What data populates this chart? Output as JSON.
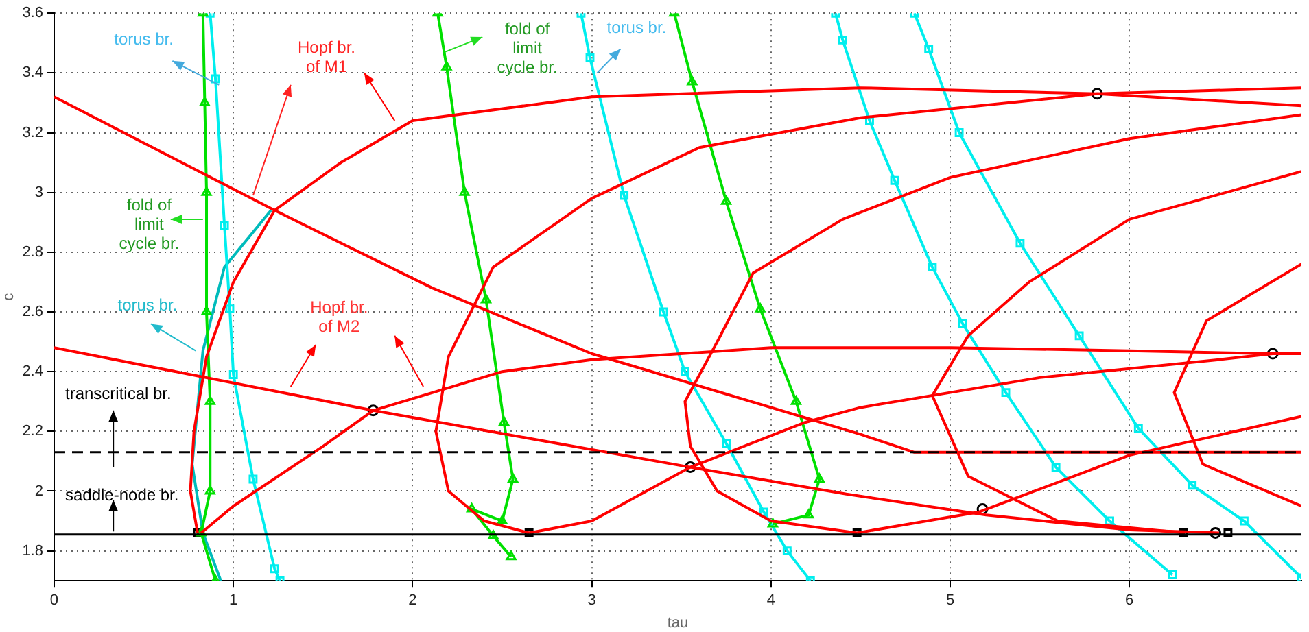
{
  "chart_data": {
    "type": "line",
    "xlabel": "tau",
    "ylabel": "c",
    "xlim": [
      0,
      6.96
    ],
    "ylim": [
      1.7,
      3.6
    ],
    "xticks": [
      0,
      1,
      2,
      3,
      4,
      5,
      6
    ],
    "yticks": [
      1.8,
      2,
      2.2,
      2.4,
      2.6,
      2.8,
      3,
      3.2,
      3.4,
      3.6
    ],
    "grid": true,
    "legend": false,
    "marker": "none",
    "series": [
      {
        "color": "#ff0000",
        "x": [
          0,
          1.23,
          2.11,
          3.0,
          4.5,
          4.8,
          6.96
        ],
        "values": [
          3.32,
          2.94,
          2.68,
          2.46,
          2.19,
          2.13,
          2.13
        ]
      },
      {
        "color": "#ff0000",
        "x": [
          0,
          1.78,
          3.55,
          4.42,
          5.2,
          6.0,
          6.5
        ],
        "values": [
          2.48,
          2.27,
          2.08,
          1.99,
          1.92,
          1.87,
          1.86
        ]
      },
      {
        "color": "#ff0000",
        "x": [
          0.8,
          0.76,
          0.78,
          0.85,
          1.0,
          1.23,
          1.6,
          2.0,
          3.0,
          4.5,
          5.82,
          6.96
        ],
        "values": [
          1.86,
          2.0,
          2.2,
          2.45,
          2.7,
          2.94,
          3.1,
          3.24,
          3.32,
          3.35,
          3.33,
          3.29
        ]
      },
      {
        "color": "#ff0000",
        "x": [
          0.82,
          1.0,
          1.5,
          1.78,
          2.5,
          3.0,
          4.0,
          5.0,
          6.0,
          6.8,
          6.96
        ],
        "values": [
          1.86,
          1.95,
          2.15,
          2.27,
          2.4,
          2.44,
          2.48,
          2.48,
          2.47,
          2.46,
          2.46
        ]
      },
      {
        "color": "#ff0000",
        "x": [
          2.65,
          2.4,
          2.2,
          2.13,
          2.2,
          2.45,
          3.0,
          3.6,
          4.5,
          5.82,
          6.96
        ],
        "values": [
          1.86,
          1.9,
          2.0,
          2.2,
          2.45,
          2.75,
          2.98,
          3.15,
          3.25,
          3.33,
          3.35
        ]
      },
      {
        "color": "#ff0000",
        "x": [
          2.65,
          3.0,
          3.55,
          4.19,
          4.5,
          5.5,
          6.5,
          6.8
        ],
        "values": [
          1.86,
          1.9,
          2.08,
          2.23,
          2.28,
          2.38,
          2.44,
          2.46
        ]
      },
      {
        "color": "#ff0000",
        "x": [
          4.48,
          5.16,
          6.0,
          6.96
        ],
        "values": [
          1.86,
          1.93,
          2.12,
          2.25
        ]
      },
      {
        "color": "#ff0000",
        "x": [
          4.48,
          4.0,
          3.7,
          3.55,
          3.52,
          3.7,
          3.9,
          4.4,
          5.0,
          6.0,
          6.96
        ],
        "values": [
          1.86,
          1.9,
          2.0,
          2.15,
          2.3,
          2.5,
          2.73,
          2.91,
          3.05,
          3.18,
          3.26
        ]
      },
      {
        "color": "#ff0000",
        "x": [
          6.31,
          5.6,
          5.1,
          4.9,
          5.1,
          5.44,
          6.0,
          6.96
        ],
        "values": [
          1.86,
          1.9,
          2.05,
          2.32,
          2.52,
          2.7,
          2.91,
          3.07
        ]
      },
      {
        "color": "#ff0000",
        "x": [
          6.96,
          6.41,
          6.25,
          6.43,
          6.96
        ],
        "values": [
          1.95,
          2.09,
          2.33,
          2.57,
          2.76
        ]
      },
      {
        "color": "#00e000",
        "marker": "triangle",
        "x": [
          0.83,
          0.84,
          0.85,
          0.85,
          0.87,
          0.87,
          0.82,
          0.9
        ],
        "values": [
          3.6,
          3.3,
          3.0,
          2.6,
          2.3,
          2.0,
          1.86,
          1.7
        ]
      },
      {
        "color": "#00e000",
        "marker": "triangle",
        "x": [
          2.14,
          2.19,
          2.29,
          2.41,
          2.51,
          2.56,
          2.5,
          2.33,
          2.45,
          2.55
        ],
        "values": [
          3.6,
          3.42,
          3.0,
          2.64,
          2.23,
          2.04,
          1.9,
          1.94,
          1.85,
          1.78
        ]
      },
      {
        "color": "#00e000",
        "marker": "triangle",
        "x": [
          3.46,
          3.56,
          3.75,
          3.94,
          4.14,
          4.27,
          4.21,
          4.01
        ],
        "values": [
          3.6,
          3.37,
          2.97,
          2.61,
          2.3,
          2.04,
          1.92,
          1.89
        ]
      },
      {
        "color": "#00eeee",
        "marker": "square",
        "x": [
          0.87,
          0.9,
          0.95,
          0.98,
          1.0,
          1.11,
          1.23,
          1.26
        ],
        "values": [
          3.6,
          3.38,
          2.89,
          2.61,
          2.39,
          2.04,
          1.74,
          1.7
        ]
      },
      {
        "color": "#00bbbb",
        "marker": "none",
        "x": [
          1.21,
          0.95,
          0.83,
          0.77,
          0.83,
          0.93
        ],
        "values": [
          2.94,
          2.75,
          2.47,
          2.09,
          1.86,
          1.7
        ]
      },
      {
        "color": "#00eeee",
        "marker": "square",
        "x": [
          2.94,
          2.99,
          3.18,
          3.4,
          3.52,
          3.75,
          3.96,
          4.09,
          4.22
        ],
        "values": [
          3.6,
          3.45,
          2.99,
          2.6,
          2.4,
          2.16,
          1.93,
          1.8,
          1.7
        ]
      },
      {
        "color": "#00eeee",
        "marker": "square",
        "x": [
          4.36,
          4.4,
          4.55,
          4.69,
          4.9,
          5.07,
          5.31,
          5.59,
          5.89,
          6.24
        ],
        "values": [
          3.6,
          3.51,
          3.24,
          3.04,
          2.75,
          2.56,
          2.33,
          2.08,
          1.9,
          1.72
        ]
      },
      {
        "color": "#00eeee",
        "marker": "square",
        "x": [
          4.8,
          4.88,
          5.05,
          5.39,
          5.72,
          6.05,
          6.35,
          6.64,
          6.96
        ],
        "values": [
          3.6,
          3.48,
          3.2,
          2.83,
          2.52,
          2.21,
          2.02,
          1.9,
          1.71
        ]
      },
      {
        "type": "scatter",
        "color": "#000000",
        "marker": "circle",
        "x": [
          1.78,
          3.55,
          5.18,
          5.82,
          6.8,
          6.48
        ],
        "values": [
          2.27,
          2.08,
          1.94,
          3.33,
          2.46,
          1.86
        ]
      },
      {
        "type": "scatter",
        "color": "#000000",
        "marker": "square",
        "x": [
          0.8,
          2.65,
          4.48,
          6.3,
          6.55
        ],
        "values": [
          1.86,
          1.86,
          1.86,
          1.86,
          1.86
        ]
      }
    ],
    "ref_lines": [
      {
        "axis": "y",
        "value": 2.13,
        "label": "transcritical br.",
        "color": "#000000",
        "line_style": "dashed"
      },
      {
        "axis": "y",
        "value": 1.855,
        "label": "saddle-node br.",
        "color": "#000000",
        "line_style": "solid"
      }
    ],
    "annotations": [
      "torus br.",
      {
        "text": "Hopf br.\nof M1",
        "x": 1.11,
        "y": 2.99
      },
      "fold of\nlimit\ncycle br.",
      "torus br.",
      "Hopf br.\nof M2",
      "fold of\nlimit\ncycle br.",
      "torus br."
    ]
  }
}
